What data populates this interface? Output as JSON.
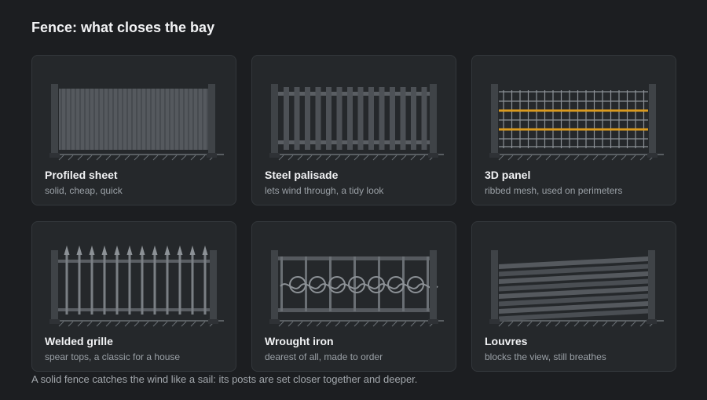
{
  "page": {
    "title": "Fence: what closes the bay",
    "footnote": "A solid fence catches the wind like a sail: its posts are set closer together and deeper."
  },
  "cards": [
    {
      "title": "Profiled sheet",
      "subtitle": "solid, cheap, quick"
    },
    {
      "title": "Steel palisade",
      "subtitle": "lets wind through, a tidy look"
    },
    {
      "title": "3D panel",
      "subtitle": "ribbed mesh, used on perimeters"
    },
    {
      "title": "Welded grille",
      "subtitle": "spear tops, a classic for a house"
    },
    {
      "title": "Wrought iron",
      "subtitle": "dearest of all, made to order"
    },
    {
      "title": "Louvres",
      "subtitle": "blocks the view, still breathes"
    }
  ],
  "colors": {
    "background": "#1c1e21",
    "card": "#25282b",
    "metal": "#4a4e53",
    "accent": "#d99a1f"
  },
  "icons": [
    "profiled-sheet-fence-icon",
    "steel-palisade-fence-icon",
    "3d-panel-fence-icon",
    "welded-grille-fence-icon",
    "wrought-iron-fence-icon",
    "louvre-fence-icon"
  ]
}
